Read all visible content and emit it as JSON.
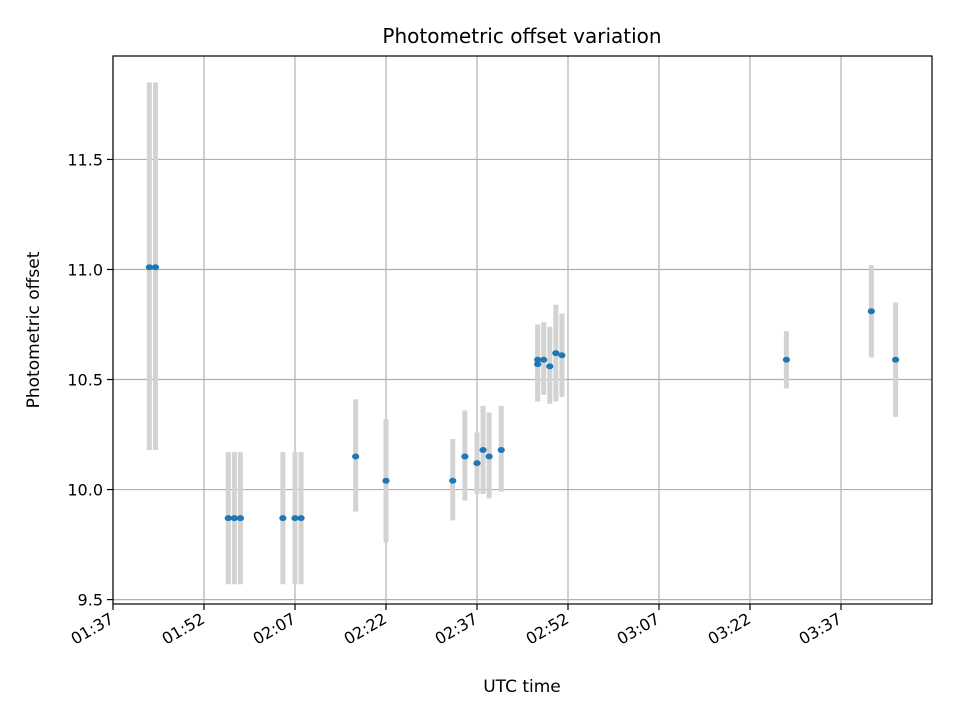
{
  "chart_data": {
    "type": "scatter",
    "title": "Photometric offset variation",
    "xlabel": "UTC time",
    "ylabel": "Photometric offset",
    "x_axis_kind": "time",
    "xlim": [
      "01:37",
      "03:52"
    ],
    "ylim": [
      9.48,
      11.97
    ],
    "x_tick_labels": [
      "01:37",
      "01:52",
      "02:07",
      "02:22",
      "02:37",
      "02:52",
      "03:07",
      "03:22",
      "03:37"
    ],
    "y_ticks": [
      9.5,
      10.0,
      10.5,
      11.0,
      11.5
    ],
    "y_tick_labels": [
      "9.5",
      "10.0",
      "10.5",
      "11.0",
      "11.5"
    ],
    "grid": true,
    "colors": {
      "points": "#1f77b4",
      "errorbars": "#d3d3d3",
      "grid": "#b0b0b0"
    },
    "points": [
      {
        "x": "01:43",
        "y": 11.01,
        "ylow": 10.18,
        "yhigh": 11.85
      },
      {
        "x": "01:44",
        "y": 11.01,
        "ylow": 10.18,
        "yhigh": 11.85
      },
      {
        "x": "01:56",
        "y": 9.87,
        "ylow": 9.57,
        "yhigh": 10.17
      },
      {
        "x": "01:57",
        "y": 9.87,
        "ylow": 9.57,
        "yhigh": 10.17
      },
      {
        "x": "01:58",
        "y": 9.87,
        "ylow": 9.57,
        "yhigh": 10.17
      },
      {
        "x": "02:05",
        "y": 9.87,
        "ylow": 9.57,
        "yhigh": 10.17
      },
      {
        "x": "02:07",
        "y": 9.87,
        "ylow": 9.57,
        "yhigh": 10.17
      },
      {
        "x": "02:08",
        "y": 9.87,
        "ylow": 9.57,
        "yhigh": 10.17
      },
      {
        "x": "02:17",
        "y": 10.15,
        "ylow": 9.9,
        "yhigh": 10.41
      },
      {
        "x": "02:22",
        "y": 10.04,
        "ylow": 9.76,
        "yhigh": 10.32
      },
      {
        "x": "02:33",
        "y": 10.04,
        "ylow": 9.86,
        "yhigh": 10.23
      },
      {
        "x": "02:35",
        "y": 10.15,
        "ylow": 9.95,
        "yhigh": 10.36
      },
      {
        "x": "02:37",
        "y": 10.12,
        "ylow": 9.98,
        "yhigh": 10.26
      },
      {
        "x": "02:38",
        "y": 10.18,
        "ylow": 9.98,
        "yhigh": 10.38
      },
      {
        "x": "02:39",
        "y": 10.15,
        "ylow": 9.96,
        "yhigh": 10.35
      },
      {
        "x": "02:41",
        "y": 10.18,
        "ylow": 9.99,
        "yhigh": 10.38
      },
      {
        "x": "02:47",
        "y": 10.57,
        "ylow": 10.4,
        "yhigh": 10.73
      },
      {
        "x": "02:47",
        "y": 10.59,
        "ylow": 10.43,
        "yhigh": 10.75
      },
      {
        "x": "02:48",
        "y": 10.59,
        "ylow": 10.43,
        "yhigh": 10.76
      },
      {
        "x": "02:49",
        "y": 10.56,
        "ylow": 10.39,
        "yhigh": 10.74
      },
      {
        "x": "02:50",
        "y": 10.62,
        "ylow": 10.4,
        "yhigh": 10.84
      },
      {
        "x": "02:51",
        "y": 10.61,
        "ylow": 10.42,
        "yhigh": 10.8
      },
      {
        "x": "03:28",
        "y": 10.59,
        "ylow": 10.46,
        "yhigh": 10.72
      },
      {
        "x": "03:42",
        "y": 10.81,
        "ylow": 10.6,
        "yhigh": 11.02
      },
      {
        "x": "03:46",
        "y": 10.59,
        "ylow": 10.33,
        "yhigh": 10.85
      }
    ]
  }
}
